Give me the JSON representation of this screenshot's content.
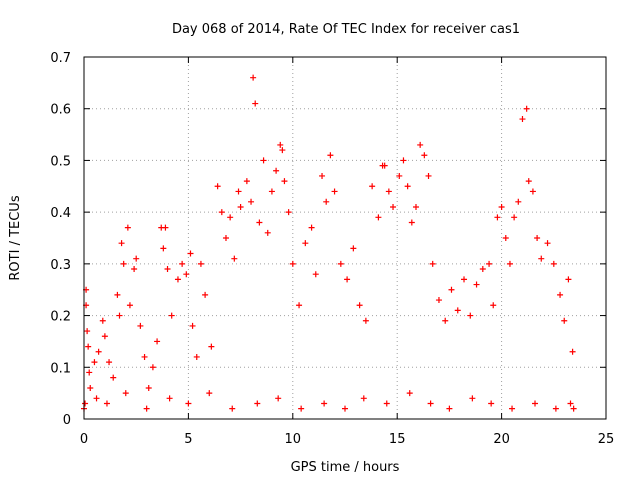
{
  "chart_data": {
    "type": "scatter",
    "title": "Day 068 of 2014, Rate Of TEC Index for receiver cas1",
    "xlabel": "GPS time / hours",
    "ylabel": "ROTI / TECUs",
    "xlim": [
      0,
      25
    ],
    "ylim": [
      0,
      0.7
    ],
    "x_ticks": [
      "0",
      "5",
      "10",
      "15",
      "20",
      "25"
    ],
    "y_ticks": [
      "0",
      "0.1",
      "0.2",
      "0.3",
      "0.4",
      "0.5",
      "0.6",
      "0.7"
    ],
    "grid": true,
    "marker": "+",
    "marker_color": "#ff0000",
    "series": [
      {
        "name": "cas1",
        "points": [
          [
            0.0,
            0.02
          ],
          [
            0.1,
            0.25
          ],
          [
            0.1,
            0.22
          ],
          [
            0.15,
            0.17
          ],
          [
            0.2,
            0.14
          ],
          [
            0.25,
            0.09
          ],
          [
            0.3,
            0.06
          ],
          [
            0.05,
            0.03
          ],
          [
            0.5,
            0.11
          ],
          [
            0.7,
            0.13
          ],
          [
            0.9,
            0.19
          ],
          [
            1.0,
            0.16
          ],
          [
            1.2,
            0.11
          ],
          [
            1.4,
            0.08
          ],
          [
            1.6,
            0.24
          ],
          [
            1.7,
            0.2
          ],
          [
            1.8,
            0.34
          ],
          [
            1.9,
            0.3
          ],
          [
            2.1,
            0.37
          ],
          [
            2.2,
            0.22
          ],
          [
            2.4,
            0.29
          ],
          [
            2.5,
            0.31
          ],
          [
            2.7,
            0.18
          ],
          [
            2.9,
            0.12
          ],
          [
            3.1,
            0.06
          ],
          [
            3.3,
            0.1
          ],
          [
            3.5,
            0.15
          ],
          [
            3.7,
            0.37
          ],
          [
            3.9,
            0.37
          ],
          [
            3.8,
            0.33
          ],
          [
            4.0,
            0.29
          ],
          [
            4.2,
            0.2
          ],
          [
            4.5,
            0.27
          ],
          [
            4.7,
            0.3
          ],
          [
            4.9,
            0.28
          ],
          [
            5.1,
            0.32
          ],
          [
            5.2,
            0.18
          ],
          [
            5.4,
            0.12
          ],
          [
            5.6,
            0.3
          ],
          [
            5.8,
            0.24
          ],
          [
            6.1,
            0.14
          ],
          [
            6.4,
            0.45
          ],
          [
            6.6,
            0.4
          ],
          [
            6.8,
            0.35
          ],
          [
            7.0,
            0.39
          ],
          [
            7.2,
            0.31
          ],
          [
            7.4,
            0.44
          ],
          [
            7.5,
            0.41
          ],
          [
            7.8,
            0.46
          ],
          [
            8.0,
            0.42
          ],
          [
            8.1,
            0.66
          ],
          [
            8.2,
            0.61
          ],
          [
            8.4,
            0.38
          ],
          [
            8.6,
            0.5
          ],
          [
            8.8,
            0.36
          ],
          [
            9.0,
            0.44
          ],
          [
            9.2,
            0.48
          ],
          [
            9.4,
            0.53
          ],
          [
            9.5,
            0.52
          ],
          [
            9.6,
            0.46
          ],
          [
            9.8,
            0.4
          ],
          [
            10.0,
            0.3
          ],
          [
            10.3,
            0.22
          ],
          [
            10.6,
            0.34
          ],
          [
            10.9,
            0.37
          ],
          [
            11.1,
            0.28
          ],
          [
            11.4,
            0.47
          ],
          [
            11.6,
            0.42
          ],
          [
            11.8,
            0.51
          ],
          [
            12.0,
            0.44
          ],
          [
            12.3,
            0.3
          ],
          [
            12.6,
            0.27
          ],
          [
            12.9,
            0.33
          ],
          [
            13.2,
            0.22
          ],
          [
            13.5,
            0.19
          ],
          [
            13.8,
            0.45
          ],
          [
            14.1,
            0.39
          ],
          [
            14.3,
            0.49
          ],
          [
            14.4,
            0.49
          ],
          [
            14.6,
            0.44
          ],
          [
            14.8,
            0.41
          ],
          [
            15.1,
            0.47
          ],
          [
            15.3,
            0.5
          ],
          [
            15.5,
            0.45
          ],
          [
            15.7,
            0.38
          ],
          [
            15.9,
            0.41
          ],
          [
            16.1,
            0.53
          ],
          [
            16.3,
            0.51
          ],
          [
            16.5,
            0.47
          ],
          [
            16.7,
            0.3
          ],
          [
            17.0,
            0.23
          ],
          [
            17.3,
            0.19
          ],
          [
            17.6,
            0.25
          ],
          [
            17.9,
            0.21
          ],
          [
            18.2,
            0.27
          ],
          [
            18.5,
            0.2
          ],
          [
            18.8,
            0.26
          ],
          [
            19.1,
            0.29
          ],
          [
            19.4,
            0.3
          ],
          [
            19.6,
            0.22
          ],
          [
            19.8,
            0.39
          ],
          [
            20.0,
            0.41
          ],
          [
            20.2,
            0.35
          ],
          [
            20.4,
            0.3
          ],
          [
            20.6,
            0.39
          ],
          [
            20.8,
            0.42
          ],
          [
            21.0,
            0.58
          ],
          [
            21.2,
            0.6
          ],
          [
            21.3,
            0.46
          ],
          [
            21.5,
            0.44
          ],
          [
            21.7,
            0.35
          ],
          [
            21.9,
            0.31
          ],
          [
            22.2,
            0.34
          ],
          [
            22.5,
            0.3
          ],
          [
            22.8,
            0.24
          ],
          [
            23.0,
            0.19
          ],
          [
            23.2,
            0.27
          ],
          [
            23.4,
            0.13
          ],
          [
            23.45,
            0.02
          ],
          [
            23.3,
            0.03
          ],
          [
            0.6,
            0.04
          ],
          [
            1.1,
            0.03
          ],
          [
            2.0,
            0.05
          ],
          [
            3.0,
            0.02
          ],
          [
            4.1,
            0.04
          ],
          [
            5.0,
            0.03
          ],
          [
            6.0,
            0.05
          ],
          [
            7.1,
            0.02
          ],
          [
            8.3,
            0.03
          ],
          [
            9.3,
            0.04
          ],
          [
            10.4,
            0.02
          ],
          [
            11.5,
            0.03
          ],
          [
            12.5,
            0.02
          ],
          [
            13.4,
            0.04
          ],
          [
            14.5,
            0.03
          ],
          [
            15.6,
            0.05
          ],
          [
            16.6,
            0.03
          ],
          [
            17.5,
            0.02
          ],
          [
            18.6,
            0.04
          ],
          [
            19.5,
            0.03
          ],
          [
            20.5,
            0.02
          ],
          [
            21.6,
            0.03
          ],
          [
            22.6,
            0.02
          ]
        ]
      }
    ]
  }
}
